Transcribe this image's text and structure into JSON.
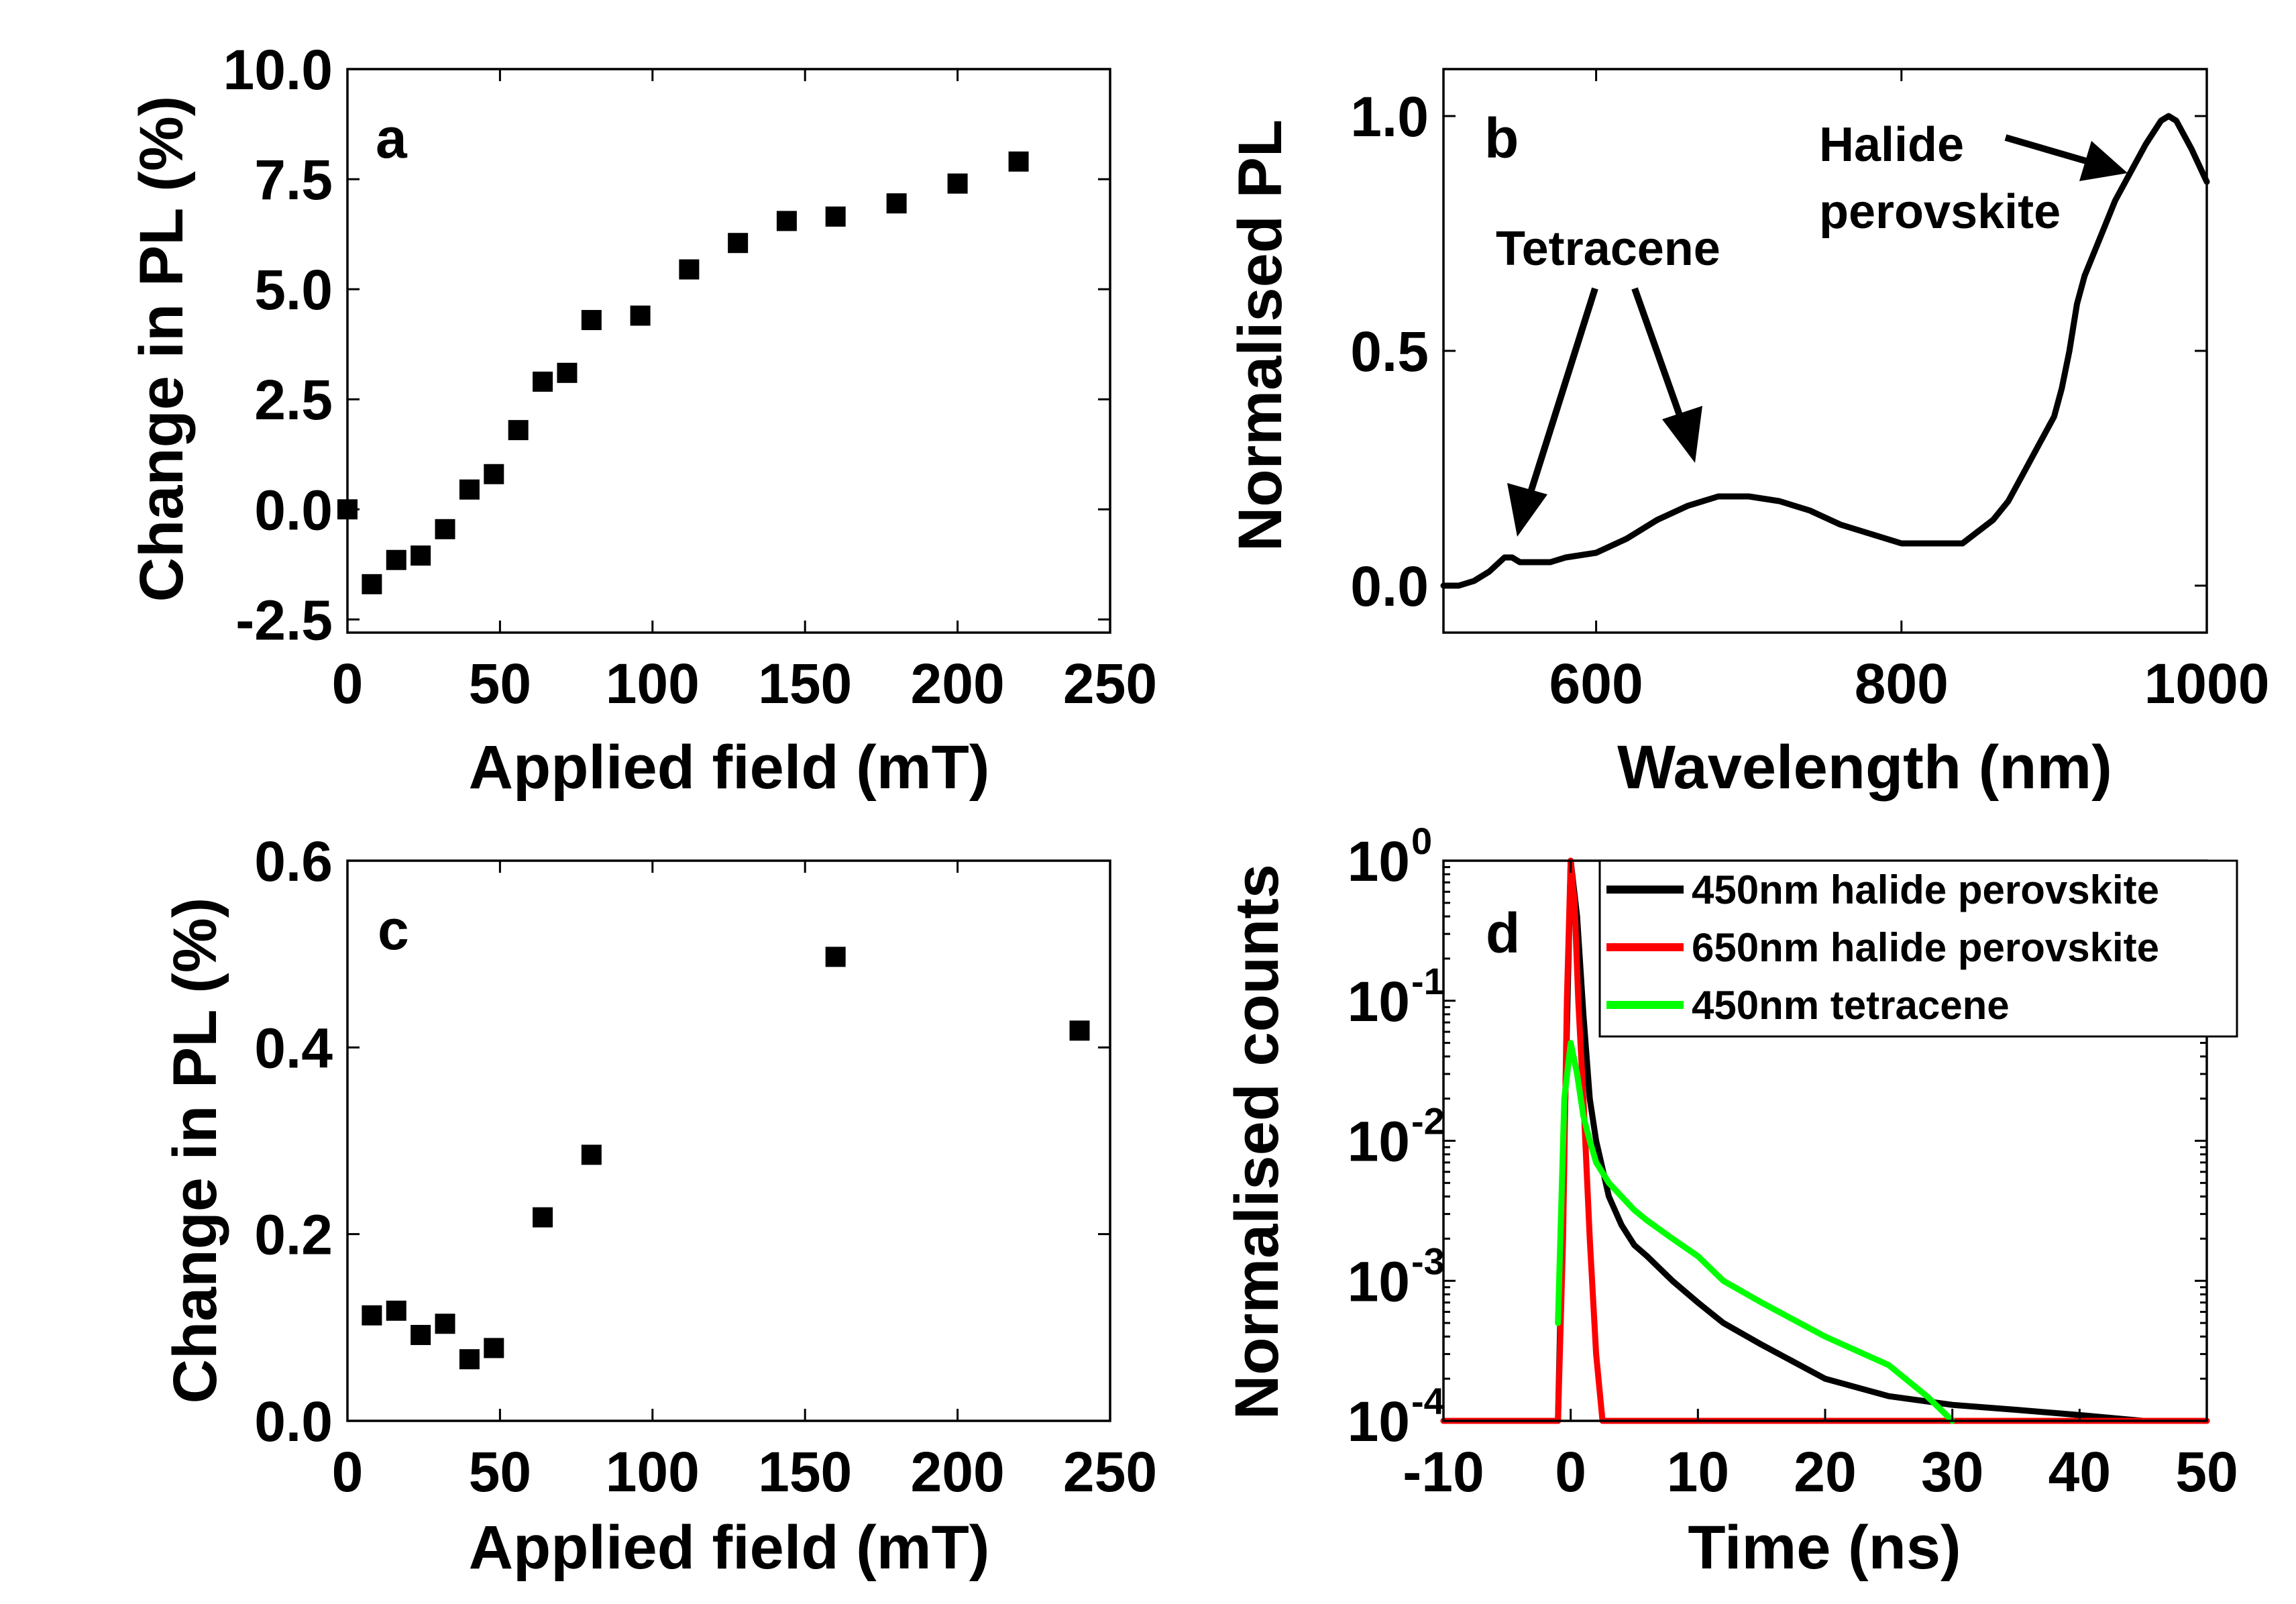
{
  "chart_data": [
    {
      "panel": "a",
      "type": "scatter",
      "xlabel": "Applied field (mT)",
      "ylabel": "Change in PL (%)",
      "xlim": [
        0,
        250
      ],
      "ylim": [
        -2.8,
        10
      ],
      "xticks": [
        0,
        50,
        100,
        150,
        200,
        250
      ],
      "yticks": [
        -2.5,
        0.0,
        2.5,
        5.0,
        7.5,
        10.0
      ],
      "ytick_labels": [
        "-2.5",
        "0.0",
        "2.5",
        "5.0",
        "7.5",
        "10.0"
      ],
      "series": [
        {
          "name": "data",
          "color": "#000000",
          "x": [
            0,
            8,
            16,
            24,
            32,
            40,
            48,
            56,
            64,
            72,
            80,
            96,
            112,
            128,
            144,
            160,
            180,
            200,
            220
          ],
          "y": [
            0.0,
            -1.7,
            -1.15,
            -1.05,
            -0.45,
            0.45,
            0.8,
            1.8,
            2.9,
            3.1,
            4.3,
            4.4,
            5.45,
            6.05,
            6.55,
            6.65,
            6.95,
            7.4,
            7.9
          ]
        }
      ]
    },
    {
      "panel": "b",
      "type": "line",
      "xlabel": "Wavelength (nm)",
      "ylabel": "Normalised PL",
      "xlim": [
        500,
        1000
      ],
      "ylim": [
        -0.1,
        1.1
      ],
      "xticks": [
        600,
        800,
        1000
      ],
      "yticks": [
        0.0,
        0.5,
        1.0
      ],
      "ytick_labels": [
        "0.0",
        "0.5",
        "1.0"
      ],
      "annotations": [
        "Tetracene",
        "Halide",
        "perovskite"
      ],
      "series": [
        {
          "name": "PL spectrum",
          "color": "#000000",
          "x": [
            500,
            510,
            520,
            530,
            540,
            545,
            550,
            560,
            570,
            580,
            600,
            620,
            640,
            660,
            680,
            700,
            720,
            740,
            760,
            780,
            800,
            820,
            840,
            860,
            870,
            880,
            890,
            900,
            905,
            910,
            915,
            920,
            930,
            940,
            950,
            960,
            970,
            975,
            980,
            990,
            1000
          ],
          "y": [
            0.0,
            0.0,
            0.01,
            0.03,
            0.06,
            0.06,
            0.05,
            0.05,
            0.05,
            0.06,
            0.07,
            0.1,
            0.14,
            0.17,
            0.19,
            0.19,
            0.18,
            0.16,
            0.13,
            0.11,
            0.09,
            0.09,
            0.09,
            0.14,
            0.18,
            0.24,
            0.3,
            0.36,
            0.42,
            0.5,
            0.6,
            0.66,
            0.74,
            0.82,
            0.88,
            0.94,
            0.99,
            1.0,
            0.99,
            0.93,
            0.86
          ]
        }
      ]
    },
    {
      "panel": "c",
      "type": "scatter",
      "xlabel": "Applied field (mT)",
      "ylabel": "Change in PL (%)",
      "xlim": [
        0,
        250
      ],
      "ylim": [
        0,
        0.6
      ],
      "xticks": [
        0,
        50,
        100,
        150,
        200,
        250
      ],
      "yticks": [
        0.0,
        0.2,
        0.4,
        0.6
      ],
      "ytick_labels": [
        "0.0",
        "0.2",
        "0.4",
        "0.6"
      ],
      "series": [
        {
          "name": "data",
          "color": "#000000",
          "x": [
            8,
            16,
            24,
            32,
            40,
            48,
            64,
            80,
            160,
            240
          ],
          "y": [
            0.113,
            0.118,
            0.092,
            0.104,
            0.066,
            0.078,
            0.218,
            0.285,
            0.497,
            0.418
          ]
        }
      ]
    },
    {
      "panel": "d",
      "type": "line",
      "yscale": "log",
      "xlabel": "Time (ns)",
      "ylabel": "Normalised counts",
      "xlim": [
        -10,
        50
      ],
      "ylim": [
        0.0001,
        1
      ],
      "xticks": [
        -10,
        0,
        10,
        20,
        30,
        40,
        50
      ],
      "yticks": [
        0.0001,
        0.001,
        0.01,
        0.1,
        1
      ],
      "ytick_mantissa": [
        "10",
        "10",
        "10",
        "10",
        "10"
      ],
      "ytick_exponents": [
        "-4",
        "-3",
        "-2",
        "-1",
        "0"
      ],
      "legend_position": "top-right",
      "series": [
        {
          "name": "450nm halide perovskite",
          "color": "#000000",
          "x": [
            -10,
            -1,
            -0.5,
            0,
            0.5,
            1,
            1.5,
            2,
            3,
            4,
            5,
            6,
            8,
            10,
            12,
            15,
            18,
            20,
            25,
            30,
            35,
            40,
            45,
            50
          ],
          "y": [
            0.0001,
            0.0001,
            0.01,
            1.0,
            0.4,
            0.08,
            0.02,
            0.01,
            0.004,
            0.0025,
            0.0018,
            0.0015,
            0.001,
            0.0007,
            0.0005,
            0.00035,
            0.00025,
            0.0002,
            0.00015,
            0.00013,
            0.00012,
            0.00011,
            0.0001,
            0.0001
          ]
        },
        {
          "name": "650nm halide perovskite",
          "color": "#ff0000",
          "x": [
            -10,
            -1,
            -0.6,
            -0.3,
            0,
            0.3,
            0.6,
            1,
            1.5,
            2,
            2.5,
            3,
            50
          ],
          "y": [
            0.0001,
            0.0001,
            0.002,
            0.1,
            1.0,
            0.5,
            0.1,
            0.02,
            0.002,
            0.0003,
            0.0001,
            0.0001,
            0.0001
          ]
        },
        {
          "name": "450nm tetracene",
          "color": "#00ff00",
          "x": [
            -1,
            -0.5,
            0,
            0.5,
            1,
            1.5,
            2,
            3,
            4,
            5,
            6,
            8,
            10,
            12,
            15,
            18,
            20,
            25,
            28,
            30
          ],
          "y": [
            0.0005,
            0.02,
            0.05,
            0.03,
            0.015,
            0.01,
            0.007,
            0.005,
            0.004,
            0.0032,
            0.0027,
            0.002,
            0.0015,
            0.001,
            0.0007,
            0.0005,
            0.0004,
            0.00025,
            0.00015,
            0.0001
          ]
        }
      ]
    }
  ],
  "panel_labels": {
    "a": "a",
    "b": "b",
    "c": "c",
    "d": "d"
  }
}
